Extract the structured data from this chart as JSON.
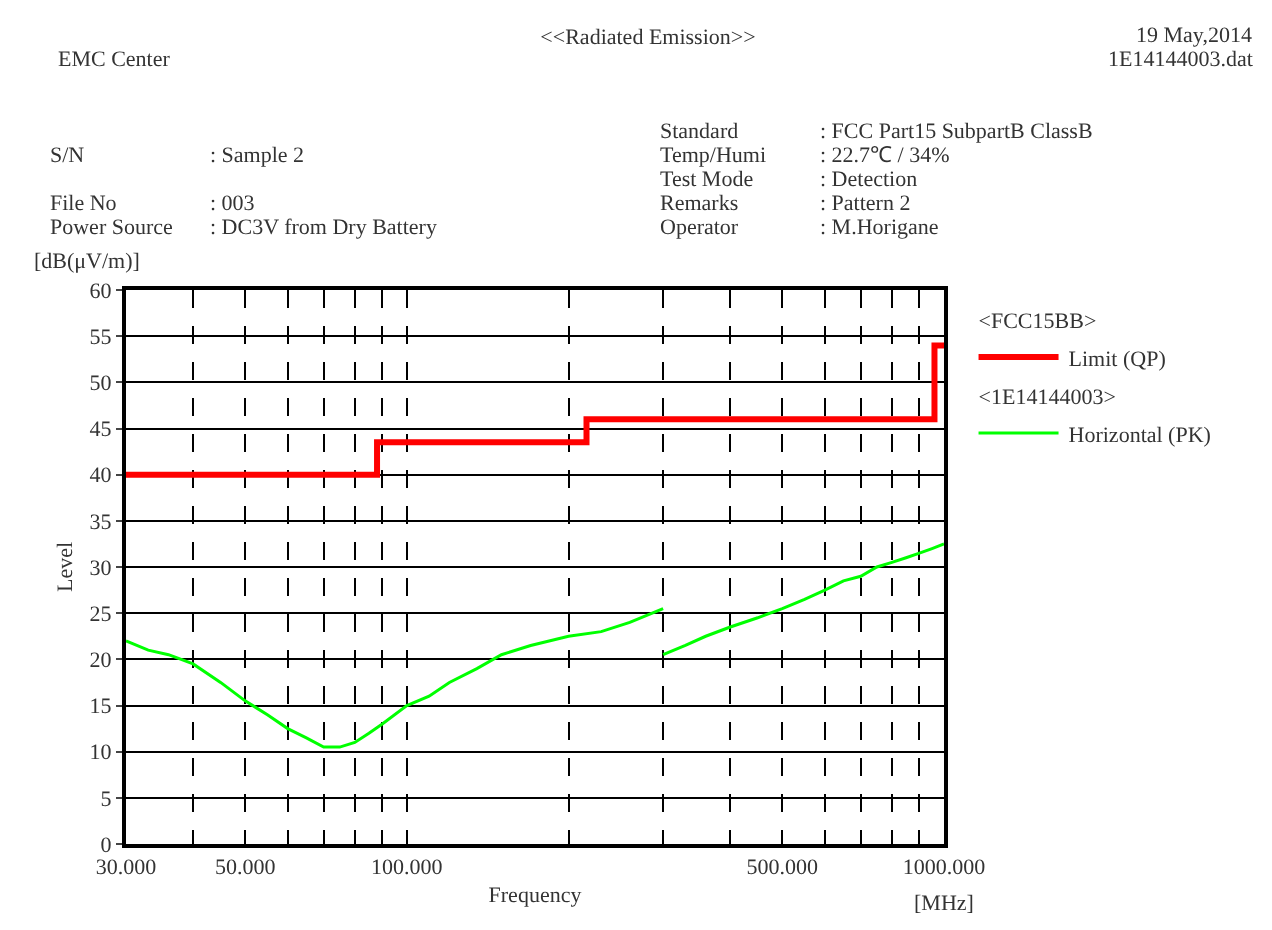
{
  "chart_data": {
    "type": "line",
    "title": "<<Radiated Emission>>",
    "xlabel": "Frequency",
    "ylabel": "Level",
    "annotations": [
      "EMC Center",
      "19 May,2014",
      "1E14144003.dat",
      "S/N",
      ": Sample 2",
      "File No",
      ": 003",
      "Power Source",
      ": DC3V from Dry Battery",
      "Standard",
      ": FCC Part15 SubpartB ClassB",
      "Temp/Humi",
      ": 22.7℃ / 34%",
      "Test Mode",
      ": Detection",
      "Remarks",
      ": Pattern 2",
      "Operator",
      ": M.Horigane",
      "[dB(μV/m)]",
      "[MHz]",
      "<FCC15BB>",
      "<1E14144003>"
    ],
    "log": "x",
    "grid": true,
    "legend": "top right",
    "marker": "none",
    "line_style": "solid",
    "xlim": [
      30,
      1000
    ],
    "ylim": [
      0,
      60
    ],
    "xticks": [
      {
        "value": 30,
        "label": "30.000"
      },
      {
        "value": 40,
        "label": null
      },
      {
        "value": 50,
        "label": "50.000"
      },
      {
        "value": 60,
        "label": null
      },
      {
        "value": 70,
        "label": null
      },
      {
        "value": 80,
        "label": null
      },
      {
        "value": 90,
        "label": null
      },
      {
        "value": 100,
        "label": "100.000"
      },
      {
        "value": 200,
        "label": null
      },
      {
        "value": 300,
        "label": null
      },
      {
        "value": 400,
        "label": null
      },
      {
        "value": 500,
        "label": "500.000"
      },
      {
        "value": 600,
        "label": null
      },
      {
        "value": 700,
        "label": null
      },
      {
        "value": 800,
        "label": null
      },
      {
        "value": 900,
        "label": null
      },
      {
        "value": 1000,
        "label": "1000.000"
      }
    ],
    "yticks": [
      0,
      5,
      10,
      15,
      20,
      25,
      30,
      35,
      40,
      45,
      50,
      55,
      60
    ],
    "series": [
      {
        "name": "Limit (QP)",
        "color": "#ff0000",
        "x": [
          30,
          88,
          88,
          216,
          216,
          960,
          960,
          1000
        ],
        "values": [
          40,
          40,
          43.5,
          43.5,
          46,
          46,
          54,
          54
        ]
      },
      {
        "name": "Horizontal (PK)",
        "color": "#00ff00",
        "x": [
          30,
          33,
          36,
          40,
          45,
          50,
          55,
          60,
          65,
          70,
          75,
          80,
          85,
          90,
          100,
          110,
          120,
          135,
          150,
          170,
          200,
          230,
          260,
          300,
          null,
          300,
          330,
          360,
          400,
          450,
          500,
          550,
          600,
          650,
          700,
          750,
          800,
          850,
          900,
          950,
          1000
        ],
        "values": [
          22,
          21,
          20.5,
          19.5,
          17.5,
          15.5,
          14,
          12.5,
          11.5,
          10.5,
          10.5,
          11,
          12,
          13,
          15,
          16,
          17.5,
          19,
          20.5,
          21.5,
          22.5,
          23,
          24,
          25.5,
          null,
          20.5,
          21.5,
          22.5,
          23.5,
          24.5,
          25.5,
          26.5,
          27.5,
          28.5,
          29,
          30,
          30.5,
          31,
          31.5,
          32,
          32.5
        ]
      }
    ]
  }
}
